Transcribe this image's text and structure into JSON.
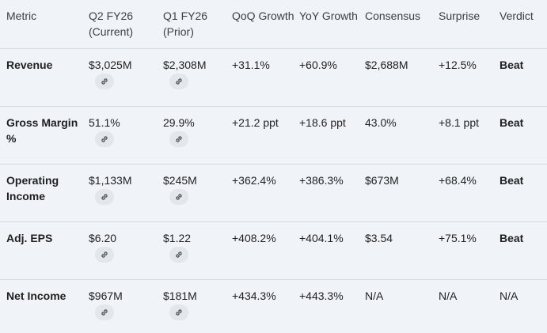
{
  "headers": [
    "Metric",
    "Q2 FY26 (Current)",
    "Q1 FY26 (Prior)",
    "QoQ Growth",
    "YoY Growth",
    "Consensus",
    "Surprise",
    "Verdict"
  ],
  "rows": [
    {
      "metric": "Revenue",
      "current": "$3,025M",
      "prior": "$2,308M",
      "qoq": "+31.1%",
      "yoy": "+60.9%",
      "consensus": "$2,688M",
      "surprise": "+12.5%",
      "verdict": "Beat"
    },
    {
      "metric": "Gross Margin %",
      "current": "51.1%",
      "prior": "29.9%",
      "qoq": "+21.2 ppt",
      "yoy": "+18.6 ppt",
      "consensus": "43.0%",
      "surprise": "+8.1 ppt",
      "verdict": "Beat"
    },
    {
      "metric": "Operating Income",
      "current": "$1,133M",
      "prior": "$245M",
      "qoq": "+362.4%",
      "yoy": "+386.3%",
      "consensus": "$673M",
      "surprise": "+68.4%",
      "verdict": "Beat"
    },
    {
      "metric": "Adj. EPS",
      "current": "$6.20",
      "prior": "$1.22",
      "qoq": "+408.2%",
      "yoy": "+404.1%",
      "consensus": "$3.54",
      "surprise": "+75.1%",
      "verdict": "Beat"
    },
    {
      "metric": "Net Income",
      "current": "$967M",
      "prior": "$181M",
      "qoq": "+434.3%",
      "yoy": "+443.3%",
      "consensus": "N/A",
      "surprise": "N/A",
      "verdict": "N/A"
    }
  ],
  "icons": {
    "source_link": "link-icon"
  }
}
